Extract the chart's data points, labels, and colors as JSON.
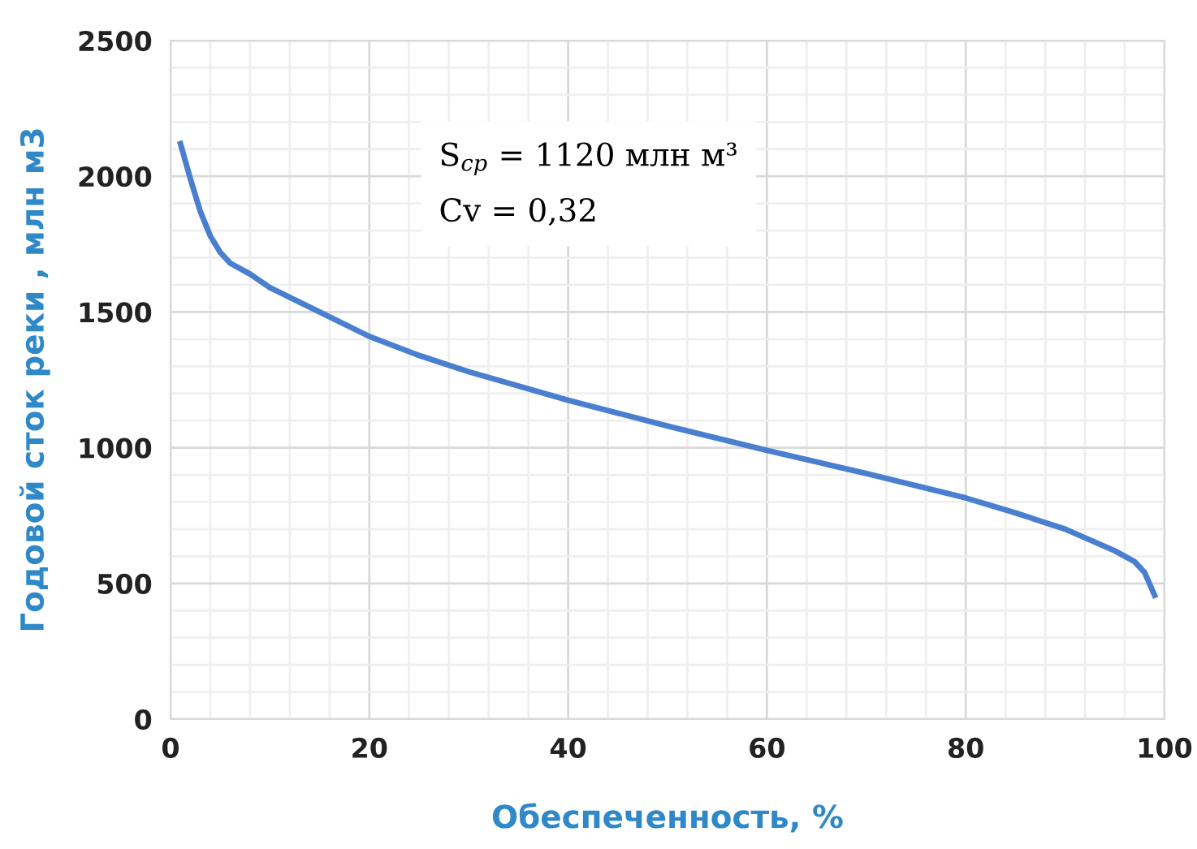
{
  "chart_data": {
    "type": "line",
    "xlabel": "Обеспеченность, %",
    "ylabel": "Годовой сток реки , млн м3",
    "x": [
      1,
      2,
      3,
      4,
      5,
      6,
      8,
      10,
      15,
      20,
      25,
      30,
      40,
      50,
      60,
      70,
      80,
      85,
      90,
      95,
      97,
      98,
      99
    ],
    "series": [
      {
        "color": "#4a7fd0",
        "values": [
          2120,
          1990,
          1870,
          1780,
          1720,
          1680,
          1640,
          1590,
          1500,
          1410,
          1340,
          1280,
          1175,
          1080,
          990,
          905,
          815,
          760,
          700,
          620,
          580,
          540,
          456
        ]
      }
    ],
    "xlim": [
      0,
      100
    ],
    "xticks": [
      0,
      20,
      40,
      60,
      80,
      100
    ],
    "ylim": [
      0,
      2500
    ],
    "yticks": [
      0,
      500,
      1000,
      1500,
      2000,
      2500
    ],
    "grid": true,
    "legend": false,
    "marker": "none",
    "line_style": "solid",
    "annotations": [
      "S$_{ср}$ = 1120 млн м³\nCv = 0,32"
    ]
  }
}
